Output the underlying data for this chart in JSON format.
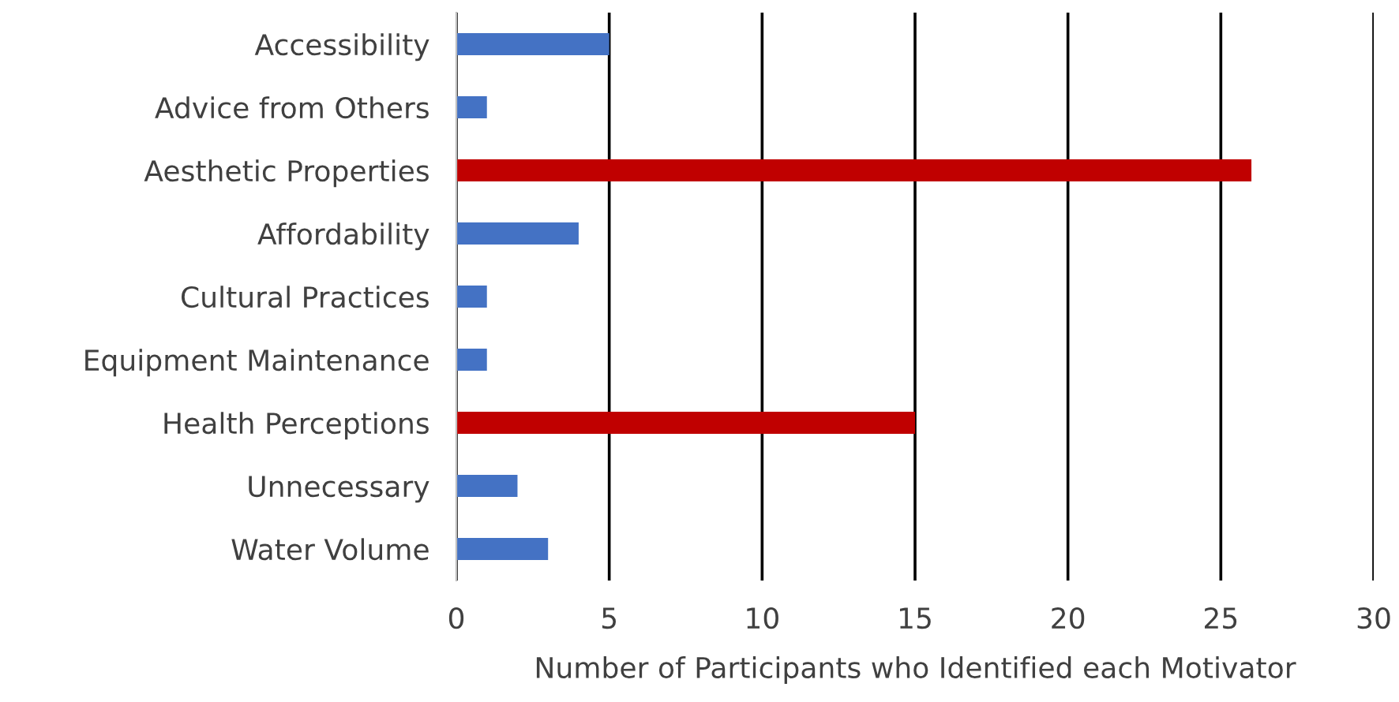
{
  "chart_data": {
    "type": "bar",
    "orientation": "horizontal",
    "xlabel": "Number of Participants who Identified each Motivator",
    "categories": [
      "Accessibility",
      "Advice from Others",
      "Aesthetic Properties",
      "Affordability",
      "Cultural Practices",
      "Equipment Maintenance",
      "Health Perceptions",
      "Unnecessary",
      "Water Volume"
    ],
    "values": [
      5,
      1,
      26,
      4,
      1,
      1,
      15,
      2,
      3
    ],
    "colors": [
      "#4472c4",
      "#4472c4",
      "#c00000",
      "#4472c4",
      "#4472c4",
      "#4472c4",
      "#c00000",
      "#4472c4",
      "#4472c4"
    ],
    "xlim": [
      0,
      30
    ],
    "xticks": [
      0,
      5,
      10,
      15,
      20,
      25,
      30
    ],
    "grid": "x"
  }
}
